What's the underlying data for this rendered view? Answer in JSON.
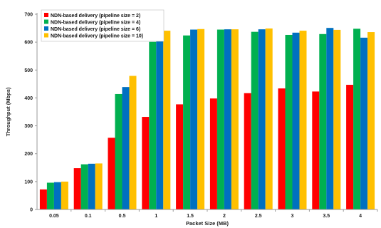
{
  "chart_data": {
    "type": "bar",
    "xlabel": "Packet  Size (MB)",
    "ylabel": "Throughput (Mbps)",
    "ylim": [
      0,
      700
    ],
    "y_ticks": [
      "0",
      "100",
      "200",
      "300",
      "400",
      "500",
      "600",
      "700"
    ],
    "grid": false,
    "legend_position": "top-left",
    "categories": [
      "0.05",
      "0.1",
      "0.5",
      "1",
      "1.5",
      "2",
      "2.5",
      "3",
      "3.5",
      "4"
    ],
    "series": [
      {
        "name": "NDN-based delivery (pipeline size = 2)",
        "color": "#ff0000",
        "values": [
          72,
          148,
          257,
          332,
          377,
          398,
          417,
          434,
          423,
          447
        ]
      },
      {
        "name": "NDN-based delivery (pipeline size = 4)",
        "color": "#00b050",
        "values": [
          96,
          162,
          414,
          601,
          624,
          645,
          637,
          626,
          629,
          648
        ]
      },
      {
        "name": "NDN-based delivery (pipeline size = 6)",
        "color": "#0070c0",
        "values": [
          98,
          164,
          439,
          614,
          645,
          646,
          646,
          634,
          651,
          616
        ]
      },
      {
        "name": "NDN-based delivery (pipeline size = 10)",
        "color": "#ffc000",
        "values": [
          100,
          165,
          479,
          641,
          647,
          646,
          649,
          641,
          644,
          636
        ]
      }
    ]
  }
}
